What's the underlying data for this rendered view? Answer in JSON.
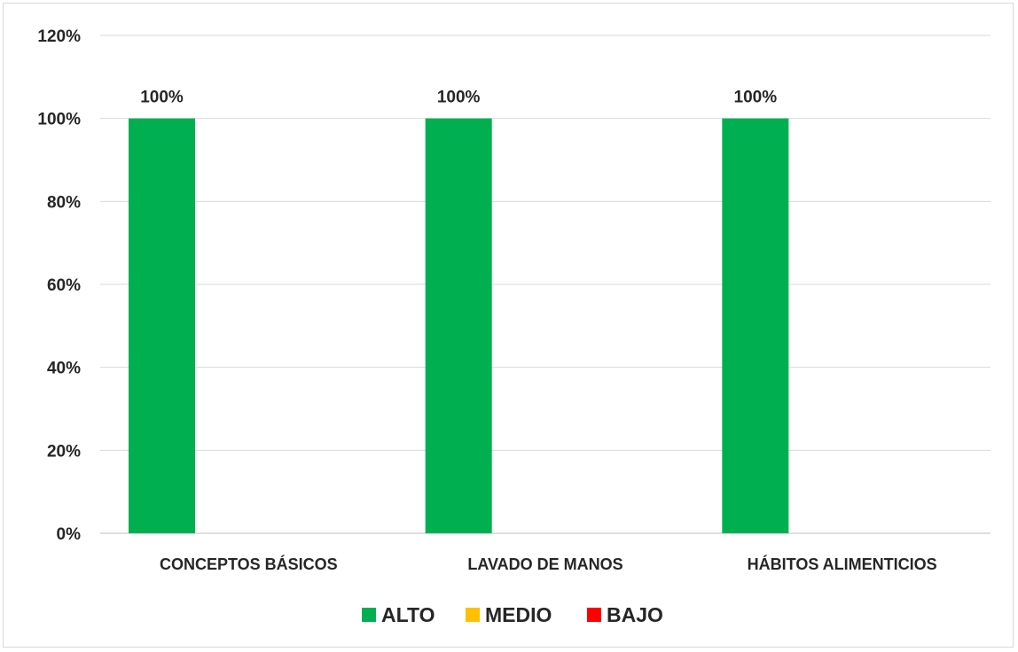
{
  "chart_data": {
    "type": "bar",
    "categories": [
      "CONCEPTOS BÁSICOS",
      "LAVADO DE MANOS",
      "HÁBITOS ALIMENTICIOS"
    ],
    "series": [
      {
        "name": "ALTO",
        "values": [
          100,
          100,
          100
        ],
        "color": "#00b050",
        "labels": [
          "100%",
          "100%",
          "100%"
        ]
      },
      {
        "name": "MEDIO",
        "values": [
          0,
          0,
          0
        ],
        "color": "#ffc000"
      },
      {
        "name": "BAJO",
        "values": [
          0,
          0,
          0
        ],
        "color": "#ff0000"
      }
    ],
    "ylim": [
      0,
      120
    ],
    "y_ticks": [
      {
        "value": 0,
        "label": "0%"
      },
      {
        "value": 20,
        "label": "20%"
      },
      {
        "value": 40,
        "label": "40%"
      },
      {
        "value": 60,
        "label": "60%"
      },
      {
        "value": 80,
        "label": "80%"
      },
      {
        "value": 100,
        "label": "100%"
      },
      {
        "value": 120,
        "label": "120%"
      }
    ],
    "grid": true,
    "legend_position": "bottom",
    "gridline_color": "#d9d9d9",
    "axis_color": "#bfbfbf"
  }
}
